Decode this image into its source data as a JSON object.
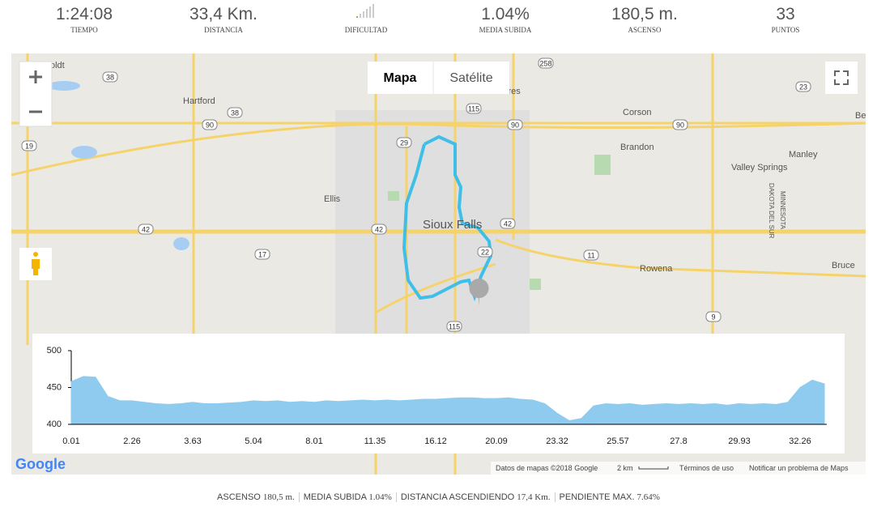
{
  "stats": [
    {
      "value": "1:24:08",
      "label": "TIEMPO"
    },
    {
      "value": "33,4 Km.",
      "label": "DISTANCIA"
    },
    {
      "label": "DIFICULTAD"
    },
    {
      "value": "1.04%",
      "label": "MEDIA SUBIDA"
    },
    {
      "value": "180,5 m.",
      "label": "ASCENSO"
    },
    {
      "value": "33",
      "label": "PUNTOS"
    }
  ],
  "map": {
    "tabs": [
      "Mapa",
      "Satélite"
    ],
    "places": [
      "oldt",
      "Hartford",
      "Ellis",
      "Sioux Falls",
      "Corson",
      "Brandon",
      "Manley",
      "Valley Springs",
      "Rowena",
      "Bruce",
      "Be",
      "cres",
      "MINNESOTA",
      "DAKOTA DEL SUR"
    ],
    "shields": [
      "38",
      "38",
      "19",
      "42",
      "42",
      "17",
      "42",
      "258",
      "115",
      "90",
      "90",
      "90",
      "29",
      "11",
      "9",
      "23",
      "115",
      "22"
    ],
    "logo": "Google",
    "attribution": [
      "Datos de mapas ©2018 Google",
      "2 km",
      "Términos de uso",
      "Notificar un problema de Maps"
    ]
  },
  "chart_data": {
    "type": "area",
    "color": "#8ecbee",
    "categories": [
      "0.01",
      null,
      null,
      null,
      null,
      "2.26",
      null,
      null,
      null,
      null,
      "3.63",
      null,
      null,
      null,
      null,
      "5.04",
      null,
      null,
      null,
      null,
      "8.01",
      null,
      null,
      null,
      null,
      "11.35",
      null,
      null,
      null,
      null,
      "16.12",
      null,
      null,
      null,
      null,
      "20.09",
      null,
      null,
      null,
      null,
      "23.32",
      null,
      null,
      null,
      null,
      "25.57",
      null,
      null,
      null,
      null,
      "27.8",
      null,
      null,
      null,
      null,
      "29.93",
      null,
      null,
      null,
      null,
      "32.26",
      null,
      null
    ],
    "values": [
      458,
      465,
      464,
      438,
      432,
      432,
      430,
      428,
      427,
      428,
      430,
      428,
      428,
      429,
      430,
      432,
      431,
      432,
      430,
      431,
      430,
      432,
      431,
      432,
      433,
      432,
      433,
      432,
      433,
      434,
      434,
      435,
      436,
      436,
      435,
      435,
      436,
      434,
      433,
      428,
      415,
      405,
      408,
      425,
      428,
      427,
      428,
      426,
      427,
      428,
      427,
      428,
      427,
      428,
      426,
      428,
      427,
      428,
      427,
      430,
      450,
      460,
      455
    ],
    "ylim": [
      400,
      500
    ],
    "yticks": [
      400,
      450,
      500
    ],
    "grid": false
  },
  "footer": [
    {
      "label": "ASCENSO",
      "value": "180,5 m."
    },
    {
      "label": "MEDIA SUBIDA",
      "value": "1.04%"
    },
    {
      "label": "DISTANCIA ASCENDIENDO",
      "value": "17,4 Km."
    },
    {
      "label": "PENDIENTE MAX.",
      "value": "7.64%"
    }
  ]
}
